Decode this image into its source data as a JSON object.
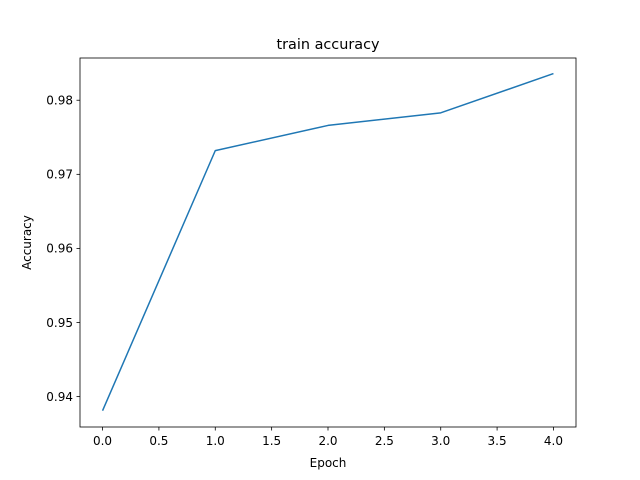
{
  "chart_data": {
    "type": "line",
    "title": "train accuracy",
    "xlabel": "Epoch",
    "ylabel": "Accuracy",
    "xlim": [
      -0.2,
      4.2
    ],
    "ylim": [
      0.9359,
      0.9857
    ],
    "xticks": [
      0.0,
      0.5,
      1.0,
      1.5,
      2.0,
      2.5,
      3.0,
      3.5,
      4.0
    ],
    "xtick_labels": [
      "0.0",
      "0.5",
      "1.0",
      "1.5",
      "2.0",
      "2.5",
      "3.0",
      "3.5",
      "4.0"
    ],
    "yticks": [
      0.94,
      0.95,
      0.96,
      0.97,
      0.98
    ],
    "ytick_labels": [
      "0.94",
      "0.95",
      "0.96",
      "0.97",
      "0.98"
    ],
    "grid": false,
    "series": [
      {
        "x": [
          0,
          1,
          2,
          3,
          4
        ],
        "values": [
          0.9381,
          0.9732,
          0.9766,
          0.9783,
          0.9836
        ],
        "color": "#1f77b4"
      }
    ]
  }
}
